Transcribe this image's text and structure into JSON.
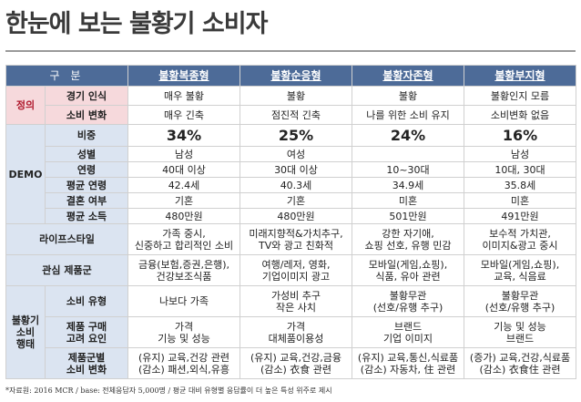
{
  "title": "한눈에 보는 불황기 소비자",
  "header": {
    "category": "구 분",
    "types": [
      "불황복종형",
      "불황순응형",
      "불황자존형",
      "불황부지형"
    ]
  },
  "definition": {
    "label": "정의",
    "rows": [
      {
        "label": "경기 인식",
        "values": [
          "매우 불황",
          "불황",
          "불황",
          "불황인지 모름"
        ]
      },
      {
        "label": "소비 변화",
        "values": [
          "매우 긴축",
          "점진적 긴축",
          "나를 위한 소비 유지",
          "소비변화 없음"
        ]
      }
    ]
  },
  "demo": {
    "label": "DEMO",
    "rows": [
      {
        "label": "비중",
        "values": [
          "34%",
          "25%",
          "24%",
          "16%"
        ]
      },
      {
        "label": "성별",
        "values": [
          "남성",
          "여성",
          "",
          "남성"
        ]
      },
      {
        "label": "연령",
        "values": [
          "40대 이상",
          "30대 이상",
          "10~30대",
          "10대, 30대"
        ]
      },
      {
        "label": "평균 연령",
        "values": [
          "42.4세",
          "40.3세",
          "34.9세",
          "35.8세"
        ]
      },
      {
        "label": "결혼 여부",
        "values": [
          "기혼",
          "기혼",
          "미혼",
          "미혼"
        ]
      },
      {
        "label": "평균 소득",
        "values": [
          "480만원",
          "480만원",
          "501만원",
          "491만원"
        ]
      }
    ]
  },
  "lifestyle": {
    "label": "라이프스타일",
    "values": [
      [
        "가족 중시,",
        "신중하고 합리적인 소비"
      ],
      [
        "미래지향적&가치추구,",
        "TV와 광고 친화적"
      ],
      [
        "강한 자기애,",
        "쇼핑 선호, 유행 민감"
      ],
      [
        "보수적 가치관,",
        "이미지&광고 중시"
      ]
    ]
  },
  "interest": {
    "label": "관심 제품군",
    "values": [
      [
        "금융(보험,증권,은행),",
        "건강보조식품"
      ],
      [
        "여행/레저, 영화,",
        "기업이미지 광고"
      ],
      [
        "모바일(게임,쇼핑),",
        "식품, 유아 관련"
      ],
      [
        "모바일(게임,쇼핑),",
        "교육, 식음료"
      ]
    ]
  },
  "behavior": {
    "label": [
      "불황기",
      "소비",
      "행태"
    ],
    "rows": [
      {
        "label": [
          "소비 유형"
        ],
        "values": [
          [
            "나보다 가족"
          ],
          [
            "가성비 추구",
            "작은 사치"
          ],
          [
            "불황무관",
            "(선호/유행 추구)"
          ],
          [
            "불황무관",
            "(선호/유행 추구)"
          ]
        ]
      },
      {
        "label": [
          "제품 구매",
          "고려 요인"
        ],
        "values": [
          [
            "가격",
            "기능 및 성능"
          ],
          [
            "가격",
            "대체품이용성"
          ],
          [
            "브랜드",
            "기업 이미지"
          ],
          [
            "기능 및 성능",
            "브랜드"
          ]
        ]
      },
      {
        "label": [
          "제품군별",
          "소비 변화"
        ],
        "values": [
          [
            "(유지) 교육,건강 관련",
            "(감소) 패션,외식,유흥"
          ],
          [
            "(유지) 교육,건강,금융",
            "(감소) 衣食 관련"
          ],
          [
            "(유지) 교육,통신,식료품",
            "(감소) 자동차, 住 관련"
          ],
          [
            "(증가) 교육,건강,식료품",
            "(감소) 衣食住 관련"
          ]
        ]
      }
    ]
  },
  "footnote": "*자료원: 2016 MCR / base: 전체응답자 5,000명 / 평균 대비 유형별 응답률이 더 높은 특성 위주로 제시"
}
